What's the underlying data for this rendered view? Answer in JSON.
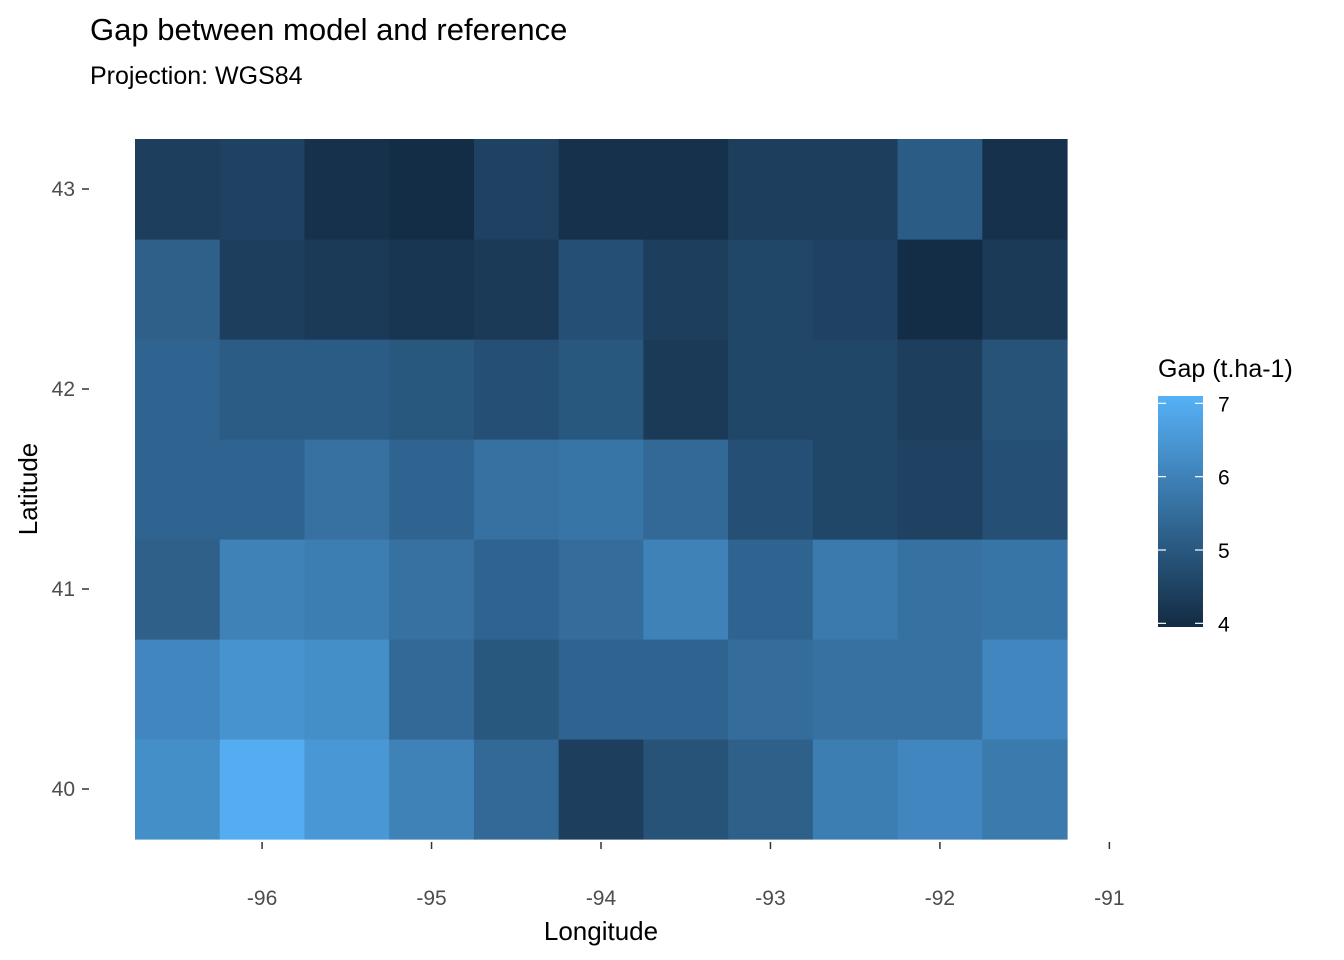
{
  "chart_data": {
    "type": "heatmap",
    "title": "Gap between model and reference",
    "subtitle": "Projection: WGS84",
    "xlabel": "Longitude",
    "ylabel": "Latitude",
    "x": [
      -96.5,
      -96.0,
      -95.5,
      -95.0,
      -94.5,
      -94.0,
      -93.5,
      -93.0,
      -92.5,
      -92.0,
      -91.5
    ],
    "y": [
      40.0,
      40.5,
      41.0,
      41.5,
      42.0,
      42.5,
      43.0
    ],
    "xlim": [
      -96.75,
      -91.25
    ],
    "ylim": [
      39.75,
      43.25
    ],
    "x_ticks": [
      -96,
      -95,
      -94,
      -93,
      -92,
      -91
    ],
    "x_tick_labels": [
      "-96",
      "-95",
      "-94",
      "-93",
      "-92",
      "-91"
    ],
    "y_ticks": [
      40,
      41,
      42,
      43
    ],
    "y_tick_labels": [
      "40",
      "41",
      "42",
      "43"
    ],
    "z": [
      [
        6.3,
        7.0,
        6.5,
        6.0,
        5.4,
        4.4,
        4.9,
        5.2,
        5.9,
        6.1,
        5.8
      ],
      [
        6.1,
        6.4,
        6.3,
        5.4,
        5.0,
        5.3,
        5.3,
        5.5,
        5.6,
        5.6,
        6.1
      ],
      [
        5.2,
        6.0,
        5.9,
        5.6,
        5.3,
        5.5,
        6.0,
        5.3,
        5.8,
        5.6,
        5.7
      ],
      [
        5.3,
        5.3,
        5.6,
        5.3,
        5.6,
        5.7,
        5.4,
        4.8,
        4.6,
        4.5,
        4.8
      ],
      [
        5.3,
        5.1,
        5.1,
        5.0,
        4.8,
        5.0,
        4.3,
        4.6,
        4.6,
        4.4,
        4.9
      ],
      [
        5.2,
        4.4,
        4.3,
        4.2,
        4.3,
        4.8,
        4.4,
        4.6,
        4.5,
        4.0,
        4.3
      ],
      [
        4.4,
        4.5,
        4.1,
        4.0,
        4.5,
        4.1,
        4.1,
        4.4,
        4.4,
        5.1,
        4.1
      ]
    ],
    "legend": {
      "title": "Gap (t.ha-1)",
      "position": "right",
      "range": [
        3.95,
        7.1
      ],
      "ticks": [
        4,
        5,
        6,
        7
      ],
      "tick_labels": [
        "4",
        "5",
        "6",
        "7"
      ],
      "low_color": "#132B43",
      "high_color": "#56B1F7"
    },
    "grid": false,
    "background": "#ffffff"
  }
}
